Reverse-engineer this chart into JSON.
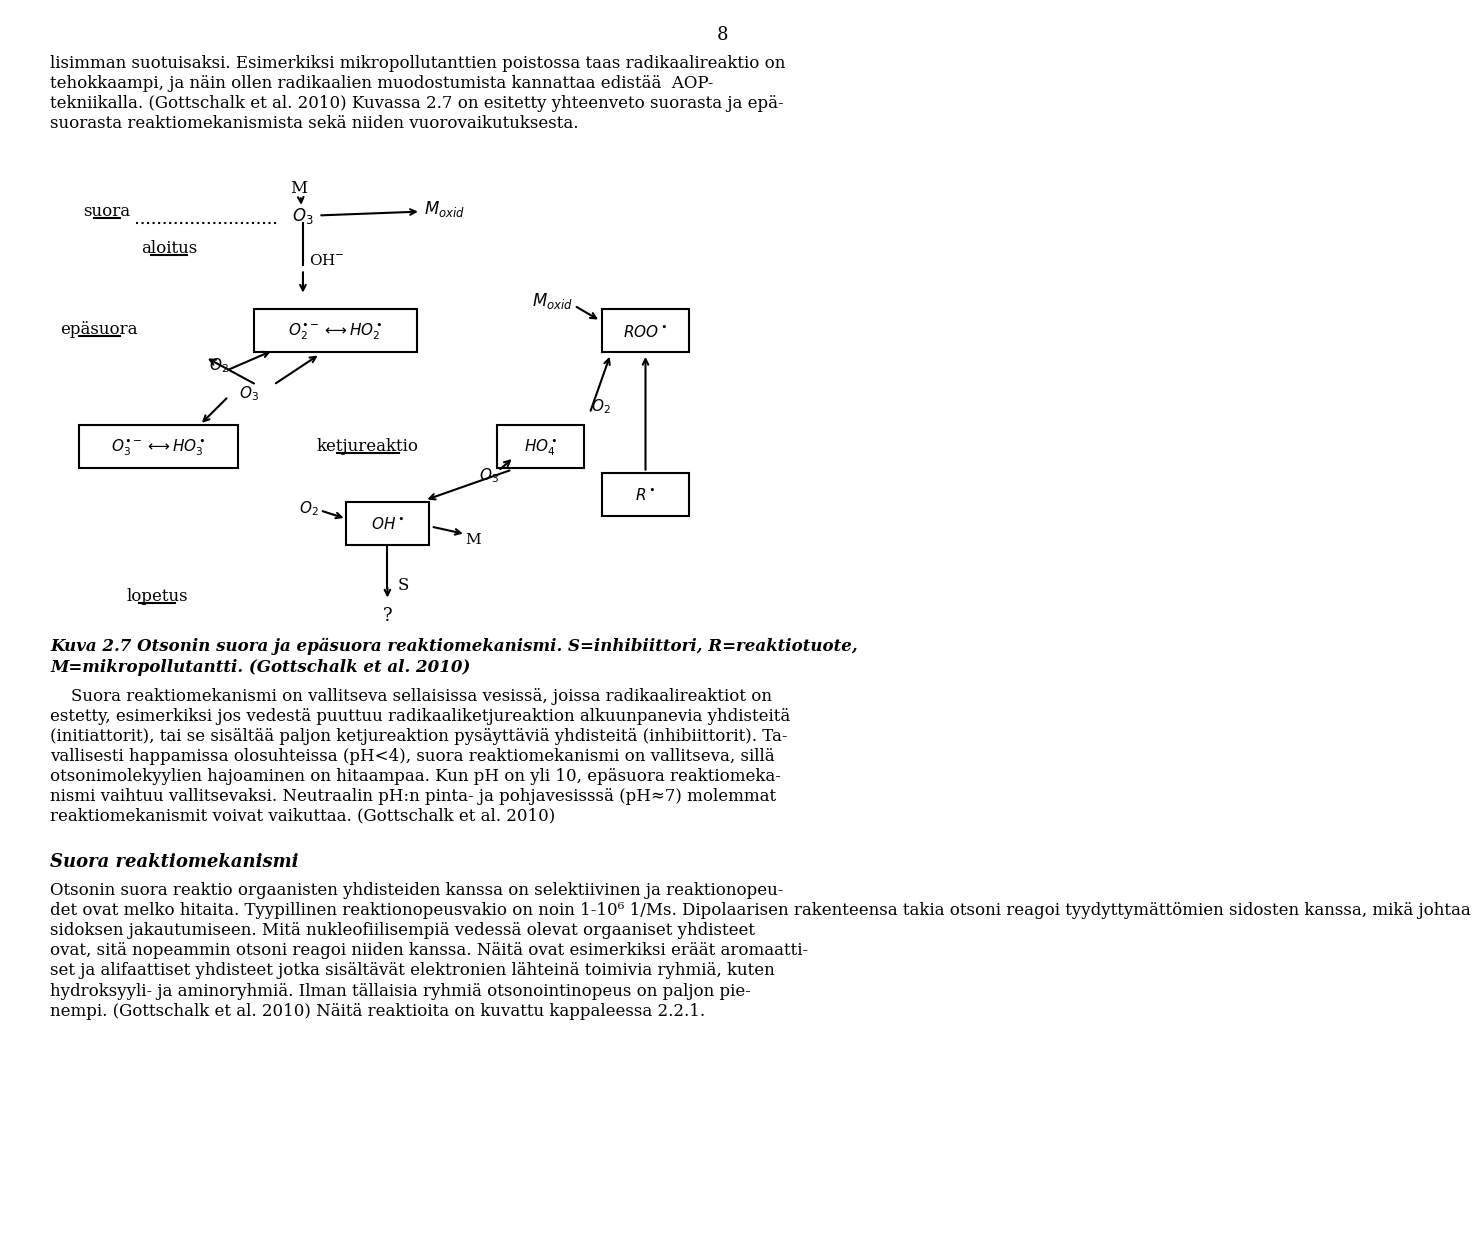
{
  "page_number": "8",
  "top_text_lines": [
    "lisimman suotuisaksi. Esimerkiksi mikropollutanttien poistossa taas radikaalireaktio on",
    "tehokkaampi, ja näin ollen radikaalien muodostumista kannattaa edistää  AOP-",
    "tekniikalla. (Gottschalk et al. 2010) Kuvassa 2.7 on esitetty yhteenveto suorasta ja epä-",
    "suorasta reaktiomekanismista sekä niiden vuorovaikutuksesta."
  ],
  "caption_line1": "Kuva 2.7 Otsonin suora ja epäsuora reaktiomekanismi. S=inhibiittori, R=reaktiotuote,",
  "caption_line2": "M=mikropollutantti. (Gottschalk et al. 2010)",
  "body1_first": "    Suora reaktiomekanismi on vallitseva sellaisissa vesissä, joissa radikaalireaktiot on",
  "body1_rest": [
    "estetty, esimerkiksi jos vedestä puuttuu radikaaliketjureaktion alkuunpanevia yhdisteitä",
    "(initiattorit), tai se sisältää paljon ketjureaktion pysäyttäviä yhdisteitä (inhibiittorit). Ta-",
    "vallisesti happamissa olosuhteissa (pH<4), suora reaktiomekanismi on vallitseva, sillä",
    "otsonimolekyylien hajoaminen on hitaampaa. Kun pH on yli 10, epäsuora reaktiomeka-",
    "nismi vaihtuu vallitsevaksi. Neutraalin pH:n pinta- ja pohjavesisssä (pH≈7) molemmat",
    "reaktiomekanismit voivat vaikuttaa. (Gottschalk et al. 2010)"
  ],
  "section_title": "Suora reaktiomekanismi",
  "body2_lines": [
    "Otsonin suora reaktio orgaanisten yhdisteiden kanssa on selektiivinen ja reaktionopeu-",
    "det ovat melko hitaita. Tyypillinen reaktionopeusvakio on noin 1-10⁶ 1/Ms. Dipolaarisen rakenteensa takia otsoni reagoi tyydyttymättömien sidosten kanssa, mikä johtaa",
    "sidoksen jakautumiseen. Mitä nukleofiilisempiä vedessä olevat orgaaniset yhdisteet",
    "ovat, sitä nopeammin otsoni reagoi niiden kanssa. Näitä ovat esimerkiksi eräät aromaatti-",
    "set ja alifaattiset yhdisteet jotka sisältävät elektronien lähteinä toimivia ryhmiä, kuten",
    "hydroksyyli- ja aminoryhmiä. Ilman tällaisia ryhmiä otsonointinopeus on paljon pie-",
    "nempi. (Gottschalk et al. 2010) Näitä reaktioita on kuvattu kappaleessa 2.2.1."
  ]
}
